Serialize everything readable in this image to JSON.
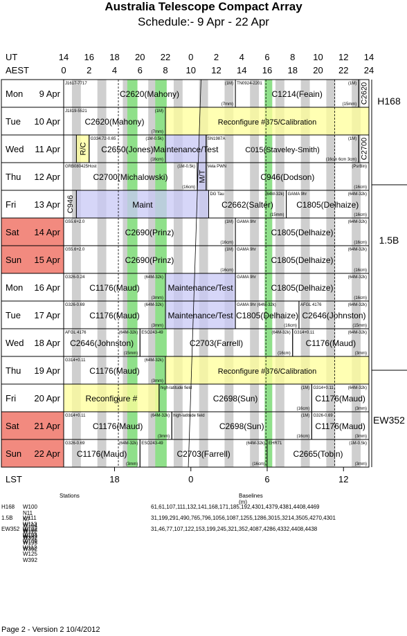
{
  "title": "Australia Telescope Compact Array",
  "subtitle": "Schedule:- 9  Apr - 22 Apr",
  "ut_label": "UT",
  "aest_label": "AEST",
  "lst_label": "LST",
  "ut_ticks": [
    "14",
    "16",
    "18",
    "20",
    "22",
    "0",
    "2",
    "4",
    "6",
    "8",
    "10",
    "12",
    "14"
  ],
  "aest_ticks": [
    "0",
    "2",
    "4",
    "6",
    "8",
    "10",
    "12",
    "14",
    "16",
    "18",
    "20",
    "22",
    "24"
  ],
  "lst_ticks": [
    "18",
    "0",
    "6",
    "12"
  ],
  "configs": [
    "H168",
    "1.5B",
    "EW352"
  ],
  "days": [
    {
      "day": "Mon",
      "date": "9  Apr",
      "weekend": false
    },
    {
      "day": "Tue",
      "date": "10 Apr",
      "weekend": false
    },
    {
      "day": "Wed",
      "date": "11 Apr",
      "weekend": false
    },
    {
      "day": "Thu",
      "date": "12 Apr",
      "weekend": false
    },
    {
      "day": "Fri",
      "date": "13 Apr",
      "weekend": false
    },
    {
      "day": "Sat",
      "date": "14 Apr",
      "weekend": true
    },
    {
      "day": "Sun",
      "date": "15 Apr",
      "weekend": true
    },
    {
      "day": "Mon",
      "date": "16 Apr",
      "weekend": false
    },
    {
      "day": "Tue",
      "date": "17 Apr",
      "weekend": false
    },
    {
      "day": "Wed",
      "date": "18 Apr",
      "weekend": false
    },
    {
      "day": "Thu",
      "date": "19 Apr",
      "weekend": false
    },
    {
      "day": "Fri",
      "date": "20 Apr",
      "weekend": false
    },
    {
      "day": "Sat",
      "date": "21 Apr",
      "weekend": true
    },
    {
      "day": "Sun",
      "date": "22 Apr",
      "weekend": true
    }
  ],
  "projects": [
    {
      "row": 0,
      "start": 0,
      "end": 13.5,
      "label": "C2620(Mahony)",
      "src": "J1617-7717",
      "band": "(1M)",
      "note": "(7mm)"
    },
    {
      "row": 0,
      "start": 13.5,
      "end": 23.2,
      "label": "C1214(Feain)",
      "src": "TN0924-2201",
      "band": "(1M)",
      "note": "(15mm)"
    },
    {
      "row": 0,
      "start": 23.2,
      "end": 24,
      "label": "C2620",
      "vertical": true
    },
    {
      "row": 1,
      "start": 0,
      "end": 8,
      "label": "C2620(Mahony)",
      "src": "J1819-5521",
      "band": "(1M)",
      "note": "(7mm)"
    },
    {
      "row": 1,
      "start": 8,
      "end": 24,
      "label": "Reconfigure #375/Calibration"
    },
    {
      "row": 2,
      "start": 1,
      "end": 2,
      "label": "R/C",
      "vertical": true
    },
    {
      "row": 2,
      "start": 2,
      "end": 8,
      "label": "C2650(Jones)",
      "src": "G334.72-0.65",
      "band": "(1M-0.5k)",
      "note": "(16cm)"
    },
    {
      "row": 2,
      "start": 8,
      "end": 11.2,
      "label": "Maintenance/Test"
    },
    {
      "row": 2,
      "start": 11.2,
      "end": 23.2,
      "label": "C015(Staveley-Smith)",
      "src": "SN1987A",
      "band": "(1M)",
      "note": "(16cm 6cm 3cm)"
    },
    {
      "row": 2,
      "start": 23.2,
      "end": 24,
      "label": "C2700",
      "vertical": true
    },
    {
      "row": 3,
      "start": 0,
      "end": 10.5,
      "label": "C2700(Michalowski)",
      "src": "GRB080425Host",
      "band": "(1M-0.5k)",
      "note": "(16cm)"
    },
    {
      "row": 3,
      "start": 10.5,
      "end": 11.2,
      "label": "M/T",
      "vertical": true
    },
    {
      "row": 3,
      "start": 11.2,
      "end": 24,
      "label": "C946(Dodson)",
      "src": "Vela PWN",
      "band": "(PsrBin)",
      "note": "(16cm)"
    },
    {
      "row": 4,
      "start": 0,
      "end": 1,
      "label": "C946",
      "vertical": true
    },
    {
      "row": 4,
      "start": 1,
      "end": 11.4,
      "label": "Maint"
    },
    {
      "row": 4,
      "start": 11.4,
      "end": 17.5,
      "label": "C2662(Salter)",
      "src": "DG Tau",
      "band": "(64M-32k)",
      "note": "(15mm)"
    },
    {
      "row": 4,
      "start": 17.5,
      "end": 24,
      "label": "C1805(Delhaize)",
      "src": "GAMA 9hr",
      "band": "(64M-32k)",
      "note": "(16cm)"
    },
    {
      "row": 5,
      "start": 0,
      "end": 13.5,
      "label": "C2690(Prinz)",
      "src": "G55.6+2.0",
      "band": "(1M)",
      "note": "(16cm)"
    },
    {
      "row": 5,
      "start": 13.5,
      "end": 24,
      "label": "C1805(Delhaize)",
      "src": "GAMA 9hr",
      "band": "(64M-32k)",
      "note": "(16cm)"
    },
    {
      "row": 6,
      "start": 0,
      "end": 13.5,
      "label": "C2690(Prinz)",
      "src": "G55.6+2.0",
      "band": "(1M)",
      "note": "(16cm)"
    },
    {
      "row": 6,
      "start": 13.5,
      "end": 24,
      "label": "C1805(Delhaize)",
      "src": "GAMA 9hr",
      "band": "(64M-32k)",
      "note": "(16cm)"
    },
    {
      "row": 7,
      "start": 0,
      "end": 8,
      "label": "C1176(Maud)",
      "src": "G326-0.24",
      "band": "(64M-32k)",
      "note": "(3mm)"
    },
    {
      "row": 7,
      "start": 8,
      "end": 13.5,
      "label": "Maintenance/Test"
    },
    {
      "row": 7,
      "start": 13.5,
      "end": 24,
      "label": "C1805(Delhaize)",
      "src": "GAMA 9hr",
      "band": "(64M-32k)",
      "note": "(16cm)"
    },
    {
      "row": 8,
      "start": 0,
      "end": 8,
      "label": "C1176(Maud)",
      "src": "G326-0.69",
      "band": "(64M-32k)",
      "note": "(3mm)"
    },
    {
      "row": 8,
      "start": 8,
      "end": 13.5,
      "label": "Maintenance/Test"
    },
    {
      "row": 8,
      "start": 13.5,
      "end": 18.5,
      "label": "C1805(Delhaize)",
      "src": "GAMA 9hr (64M-32k)",
      "band": "",
      "note": "(16cm)"
    },
    {
      "row": 8,
      "start": 18.5,
      "end": 24,
      "label": "C2646(Johnston)",
      "src": "AFGL 4176",
      "band": "(64M-32k)",
      "note": "(15mm)"
    },
    {
      "row": 9,
      "start": 0,
      "end": 6,
      "label": "C2646(Johnston)",
      "src": "AFGL 4176",
      "band": "(64M-32k)",
      "note": "(15mm)"
    },
    {
      "row": 9,
      "start": 6,
      "end": 18,
      "label": "C2703(Farrell)",
      "src": "ESO243-49",
      "band": "(64M-32k)",
      "note": "(16cm)"
    },
    {
      "row": 9,
      "start": 18,
      "end": 24,
      "label": "C1176(Maud)",
      "src": "G314+0.11",
      "band": "(64M-32k)",
      "note": "(3mm)"
    },
    {
      "row": 10,
      "start": 0,
      "end": 8,
      "label": "C1176(Maud)",
      "src": "G314+0.11",
      "band": "(64M-32k)",
      "note": "(3mm)"
    },
    {
      "row": 10,
      "start": 8,
      "end": 24,
      "label": "Reconfigure #376/Calibration"
    },
    {
      "row": 11,
      "start": 0,
      "end": 7.5,
      "label": "Reconfigure #"
    },
    {
      "row": 11,
      "start": 7.5,
      "end": 19.5,
      "label": "C2698(Sun)",
      "src": "high-latitude field",
      "band": "(1M)",
      "note": "(16cm)"
    },
    {
      "row": 11,
      "start": 19.5,
      "end": 24,
      "label": "C1176(Maud)",
      "src": "G314+0.11",
      "band": "(64M-32k)",
      "note": "(3mm)"
    },
    {
      "row": 12,
      "start": 0,
      "end": 8.5,
      "label": "C1176(Maud)",
      "src": "G314+0.11",
      "band": "(64M-32k)",
      "note": "(3mm)"
    },
    {
      "row": 12,
      "start": 8.5,
      "end": 19.5,
      "label": "C2698(Sun)",
      "src": "high-latitude field",
      "band": "(1M)",
      "note": "(16cm)"
    },
    {
      "row": 12,
      "start": 19.5,
      "end": 24,
      "label": "C1176(Maud)",
      "src": "G326-0.69",
      "band": "",
      "note": "(3mm)"
    },
    {
      "row": 13,
      "start": 0,
      "end": 6,
      "label": "C1176(Maud)",
      "src": "G326-0.69",
      "band": "(64M-32k)",
      "note": "(3mm)"
    },
    {
      "row": 13,
      "start": 6,
      "end": 16,
      "label": "C2703(Farrell)",
      "src": "ESO243-49",
      "band": "(64M-32k)",
      "note": "(16cm)"
    },
    {
      "row": 13,
      "start": 16,
      "end": 24,
      "label": "C2665(Tobin)",
      "src": "EHR71",
      "band": "(1M-0.5k)",
      "note": "(3mm)"
    }
  ],
  "stations": {
    "header_stations": "Stations",
    "header_baselines": "Baselines (m)",
    "rows": [
      {
        "config": "H168",
        "stations": "W100 N11 N7 W104 W111 W392",
        "baselines": "61,61,107,111,132,141,168,171,185,192,4301,4379,4381,4408,4469"
      },
      {
        "config": "1.5B",
        "stations": "W111 W113 W163 W182 W195 W392",
        "baselines": "31,199,291,490,765,796,1056,1087,1255,1286,3015,3214,3505,4270,4301"
      },
      {
        "config": "EW352",
        "stations": "W102 W104 W109 W112 W125 W392",
        "baselines": "31,46,77,107,122,153,199,245,321,352,4087,4286,4332,4408,4438"
      }
    ]
  },
  "footer": "Page 2 - Version 2  10/4/2012",
  "colors": {
    "weekend": "#f28a7f",
    "grey": "#cfcfcf",
    "green": "#8fe08a",
    "yellow": "#ffff99",
    "blue": "#c8c8f5"
  }
}
